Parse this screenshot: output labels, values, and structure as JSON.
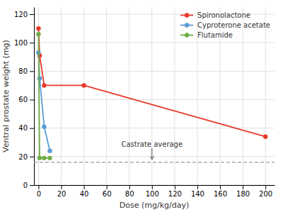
{
  "chart_data": {
    "type": "line",
    "xlabel": "Dose (mg/kg/day)",
    "ylabel": "Ventral prostate weight (mg)",
    "series": [
      {
        "name": "Spironolactone",
        "color": "#e8392a",
        "x": [
          0,
          1,
          5,
          40,
          200
        ],
        "values": [
          110,
          91,
          70,
          70,
          34
        ]
      },
      {
        "name": "Cyproterone acetate",
        "color": "#5b9bd5",
        "x": [
          0,
          1,
          5,
          10
        ],
        "values": [
          93,
          75,
          41,
          24
        ]
      },
      {
        "name": "Flutamide",
        "color": "#70ad47",
        "x": [
          0,
          1,
          5,
          10
        ],
        "values": [
          106,
          19,
          19,
          19
        ]
      }
    ],
    "marker": "circle",
    "reference_lines": [
      {
        "y": 16,
        "color": "#999999",
        "line_style": "dashed"
      }
    ],
    "annotations": [
      {
        "text": "Castrate average",
        "x": 100,
        "y": 18,
        "text_y": 26
      }
    ],
    "xlim": [
      -4,
      208
    ],
    "ylim": [
      0,
      125
    ],
    "xticks": [
      0,
      20,
      40,
      60,
      80,
      100,
      120,
      140,
      160,
      180,
      200
    ],
    "yticks": [
      0,
      20,
      40,
      60,
      80,
      100,
      120
    ],
    "grid": true,
    "legend": "upper right"
  }
}
